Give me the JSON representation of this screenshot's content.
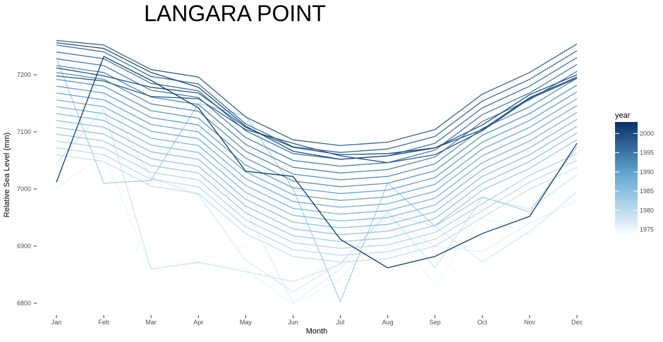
{
  "chart_data": {
    "type": "line",
    "title": "LANGARA POINT",
    "xlabel": "Month",
    "ylabel": "Relative Sea Level (mm)",
    "categories": [
      "Jan",
      "Feb",
      "Mar",
      "Apr",
      "May",
      "Jun",
      "Jul",
      "Aug",
      "Sep",
      "Oct",
      "Nov",
      "Dec"
    ],
    "yticks": [
      6800,
      6900,
      7000,
      7100,
      7200
    ],
    "ylim": [
      6790,
      7265
    ],
    "grid": false,
    "legend": {
      "title": "year",
      "placement": "right",
      "ticks": [
        1975,
        1980,
        1985,
        1990,
        1995,
        2000
      ],
      "range": [
        1974,
        2003
      ],
      "color_low": "#f7fbff",
      "color_high": "#08306b"
    },
    "series": [
      {
        "year": 1974,
        "values": [
          6944,
          6993,
          6850,
          6880,
          6900,
          6808,
          6820,
          6900,
          6880,
          6920,
          6940,
          6948
        ]
      },
      {
        "year": 1975,
        "values": [
          7000,
          7060,
          6860,
          6870,
          6860,
          6798,
          6842,
          6940,
          6832,
          6950,
          6920,
          6998
        ]
      },
      {
        "year": 1976,
        "values": [
          7240,
          7210,
          7200,
          7100,
          6965,
          6800,
          6860,
          6950,
          6900,
          6890,
          6940,
          6980
        ]
      },
      {
        "year": 1977,
        "values": [
          7234,
          7166,
          7020,
          6990,
          6875,
          6820,
          6870,
          6955,
          6935,
          6872,
          6926,
          6995
        ]
      },
      {
        "year": 1978,
        "values": [
          7045,
          7140,
          6860,
          6872,
          6855,
          6838,
          6868,
          6960,
          6862,
          6985,
          6965,
          7025
        ]
      },
      {
        "year": 1979,
        "values": [
          7060,
          7048,
          7005,
          6992,
          6922,
          6882,
          6872,
          6878,
          6900,
          6950,
          7000,
          7038
        ]
      },
      {
        "year": 1980,
        "values": [
          7072,
          7060,
          7017,
          7004,
          6934,
          6894,
          6884,
          6890,
          6912,
          6962,
          7012,
          7050
        ]
      },
      {
        "year": 1981,
        "values": [
          7084,
          7072,
          7029,
          7016,
          6946,
          6906,
          6896,
          6902,
          6924,
          6974,
          7024,
          7062
        ]
      },
      {
        "year": 1982,
        "values": [
          7230,
          7010,
          7015,
          7150,
          7128,
          7000,
          6803,
          7010,
          6935,
          6986,
          6960,
          7074
        ]
      },
      {
        "year": 1983,
        "values": [
          7096,
          7084,
          7041,
          7028,
          6958,
          6918,
          6908,
          6914,
          6936,
          6998,
          7036,
          7086
        ]
      },
      {
        "year": 1984,
        "values": [
          7108,
          7096,
          7053,
          7040,
          6970,
          6930,
          6920,
          6926,
          6948,
          7010,
          7048,
          7098
        ]
      },
      {
        "year": 1985,
        "values": [
          7120,
          7108,
          7065,
          7052,
          6982,
          6942,
          6932,
          6938,
          6960,
          7022,
          7060,
          7110
        ]
      },
      {
        "year": 1986,
        "values": [
          7132,
          7120,
          7077,
          7064,
          6994,
          6954,
          6944,
          6950,
          6972,
          7034,
          7072,
          7122
        ]
      },
      {
        "year": 1987,
        "values": [
          7144,
          7132,
          7089,
          7076,
          7006,
          6966,
          6956,
          6962,
          6984,
          7046,
          7084,
          7134
        ]
      },
      {
        "year": 1988,
        "values": [
          7156,
          7144,
          7101,
          7088,
          7018,
          6978,
          6968,
          6974,
          6996,
          7058,
          7096,
          7146
        ]
      },
      {
        "year": 1989,
        "values": [
          7168,
          7156,
          7113,
          7100,
          7030,
          6990,
          6980,
          6986,
          7008,
          7070,
          7108,
          7158
        ]
      },
      {
        "year": 1990,
        "values": [
          7180,
          7168,
          7125,
          7112,
          7042,
          7002,
          6992,
          6998,
          7020,
          7082,
          7120,
          7170
        ]
      },
      {
        "year": 1991,
        "values": [
          7192,
          7180,
          7137,
          7124,
          7054,
          7014,
          7004,
          7010,
          7032,
          7094,
          7132,
          7182
        ]
      },
      {
        "year": 1992,
        "values": [
          7204,
          7192,
          7149,
          7136,
          7066,
          7026,
          7016,
          7022,
          7044,
          7106,
          7144,
          7194
        ]
      },
      {
        "year": 1993,
        "values": [
          7216,
          7204,
          7161,
          7148,
          7078,
          7038,
          7028,
          7034,
          7056,
          7118,
          7156,
          7206
        ]
      },
      {
        "year": 1994,
        "values": [
          7228,
          7216,
          7173,
          7160,
          7090,
          7050,
          7040,
          7046,
          7068,
          7130,
          7168,
          7218
        ]
      },
      {
        "year": 1995,
        "values": [
          7240,
          7228,
          7185,
          7172,
          7102,
          7062,
          7052,
          7058,
          7080,
          7142,
          7180,
          7230
        ]
      },
      {
        "year": 1996,
        "values": [
          7252,
          7240,
          7197,
          7184,
          7114,
          7074,
          7064,
          7070,
          7092,
          7154,
          7192,
          7242
        ]
      },
      {
        "year": 1997,
        "values": [
          7260,
          7252,
          7209,
          7196,
          7126,
          7086,
          7076,
          7082,
          7104,
          7166,
          7204,
          7254
        ]
      },
      {
        "year": 1998,
        "values": [
          7198,
          7189,
          7162,
          7158,
          7104,
          7080,
          7058,
          7046,
          7060,
          7102,
          7158,
          7194
        ]
      },
      {
        "year": 1999,
        "values": [
          7212,
          7198,
          7178,
          7168,
          7108,
          7073,
          7060,
          7062,
          7072,
          7112,
          7165,
          7200
        ]
      },
      {
        "year": 2000,
        "values": [
          7256,
          7246,
          7204,
          7178,
          7110,
          7066,
          7052,
          7058,
          7072,
          7104,
          7160,
          7196
        ]
      },
      {
        "year": 2002,
        "values": [
          7012,
          7232,
          7190,
          7142,
          7031,
          7022,
          6912,
          6862,
          6882,
          6922,
          6952,
          7080
        ]
      }
    ]
  }
}
